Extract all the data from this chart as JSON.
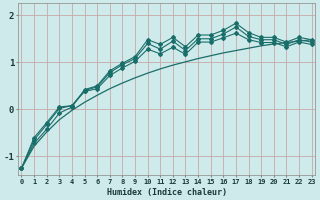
{
  "xlabel": "Humidex (Indice chaleur)",
  "bg_color": "#ceeaea",
  "line_color": "#1a6e6a",
  "grid_color": "#c8a8a8",
  "xlim_min": -0.3,
  "xlim_max": 23.3,
  "ylim_min": -1.4,
  "ylim_max": 2.25,
  "yticks": [
    -1,
    0,
    1,
    2
  ],
  "xticks": [
    0,
    1,
    2,
    3,
    4,
    5,
    6,
    7,
    8,
    9,
    10,
    11,
    12,
    13,
    14,
    15,
    16,
    17,
    18,
    19,
    20,
    21,
    22,
    23
  ],
  "series1_x": [
    0,
    1,
    2,
    3,
    4,
    5,
    6,
    7,
    8,
    9,
    10,
    11,
    12,
    13,
    14,
    15,
    16,
    17,
    18,
    19,
    20,
    21,
    22,
    23
  ],
  "series1_y": [
    -1.25,
    -0.72,
    -0.42,
    -0.08,
    0.05,
    0.42,
    0.5,
    0.82,
    0.98,
    1.12,
    1.48,
    1.38,
    1.53,
    1.33,
    1.58,
    1.58,
    1.68,
    1.83,
    1.63,
    1.53,
    1.53,
    1.43,
    1.53,
    1.48
  ],
  "series2_x": [
    0,
    1,
    2,
    3,
    4,
    5,
    6,
    7,
    8,
    9,
    10,
    11,
    12,
    13,
    14,
    15,
    16,
    17,
    18,
    19,
    20,
    21,
    22,
    23
  ],
  "series2_y": [
    -1.25,
    -0.65,
    -0.32,
    0.02,
    0.08,
    0.38,
    0.44,
    0.72,
    0.88,
    1.02,
    1.28,
    1.18,
    1.32,
    1.17,
    1.43,
    1.43,
    1.52,
    1.62,
    1.48,
    1.42,
    1.42,
    1.33,
    1.43,
    1.38
  ],
  "series3_x": [
    0,
    1,
    2,
    3,
    4,
    5,
    6,
    7,
    8,
    9,
    10,
    11,
    12,
    13,
    14,
    15,
    16,
    17,
    18,
    19,
    20,
    21,
    22,
    23
  ],
  "series3_y": [
    -1.25,
    -0.6,
    -0.28,
    0.05,
    0.08,
    0.4,
    0.48,
    0.78,
    0.95,
    1.08,
    1.4,
    1.28,
    1.45,
    1.25,
    1.5,
    1.5,
    1.6,
    1.75,
    1.55,
    1.48,
    1.48,
    1.38,
    1.48,
    1.43
  ],
  "trend_x": [
    0,
    1,
    2,
    3,
    4,
    5,
    6,
    7,
    8,
    9,
    10,
    11,
    12,
    13,
    14,
    15,
    16,
    17,
    18,
    19,
    20,
    21,
    22,
    23
  ],
  "trend_y": [
    -1.25,
    -0.78,
    -0.48,
    -0.22,
    -0.02,
    0.15,
    0.3,
    0.44,
    0.56,
    0.67,
    0.77,
    0.86,
    0.94,
    1.01,
    1.08,
    1.14,
    1.2,
    1.25,
    1.3,
    1.35,
    1.39,
    1.42,
    1.45,
    1.48
  ]
}
